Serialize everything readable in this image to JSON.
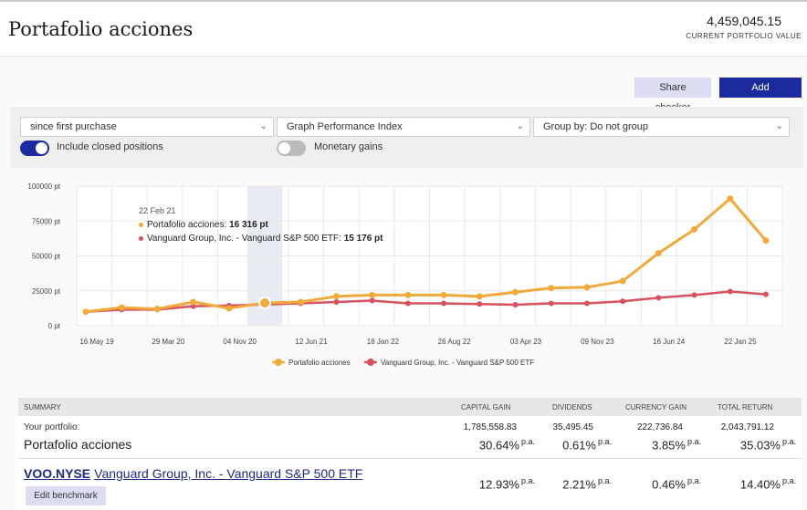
{
  "header": {
    "title": "Portafolio acciones",
    "portfolio_value": "4,459,045.15",
    "portfolio_value_label": "CURRENT PORTFOLIO VALUE"
  },
  "actions": {
    "share_label": "Share checker",
    "add_label": "Add investment"
  },
  "filters": {
    "period": "since first purchase",
    "graph_type": "Graph Performance Index",
    "group_by": "Group by: Do not group",
    "include_closed_label": "Include closed positions",
    "include_closed_on": true,
    "monetary_gains_label": "Monetary gains",
    "monetary_gains_on": false
  },
  "colors": {
    "portfolio": "#f2a93b",
    "benchmark": "#d9505f",
    "accent": "#1c2aa0"
  },
  "tooltip": {
    "date": "22 Feb 21",
    "portfolio_name": "Portafolio acciones:",
    "portfolio_value": "16 316 pt",
    "benchmark_name": "Vanguard Group, Inc. - Vanguard S&P 500 ETF:",
    "benchmark_value": "15 176 pt"
  },
  "chart_data": {
    "type": "line",
    "y_ticks": [
      "0 pt",
      "25000 pt",
      "50000 pt",
      "75000 pt",
      "100000 pt"
    ],
    "ylim": [
      0,
      100000
    ],
    "x_ticks": [
      "16 May 19",
      "29 Mar 20",
      "04 Nov 20",
      "12 Jun 21",
      "18 Jan 22",
      "26 Aug 22",
      "03 Apr 23",
      "09 Nov 23",
      "16 Jun 24",
      "22 Jan 25"
    ],
    "series": [
      {
        "name": "Portafolio acciones",
        "color": "#f2a93b",
        "values": [
          10000,
          13000,
          12000,
          17000,
          12500,
          16316,
          17000,
          21000,
          22000,
          22000,
          22000,
          21000,
          24000,
          27000,
          27500,
          32000,
          52000,
          69000,
          91000,
          61000
        ]
      },
      {
        "name": "Vanguard Group, Inc. - Vanguard S&P 500 ETF",
        "color": "#d9505f",
        "values": [
          10000,
          11500,
          11500,
          14000,
          14500,
          15176,
          16000,
          17000,
          18000,
          16000,
          16000,
          15500,
          15000,
          16000,
          16000,
          17500,
          20000,
          22000,
          24500,
          22500
        ]
      }
    ],
    "highlight_index": 5
  },
  "summary": {
    "headers": {
      "summary": "SUMMARY",
      "capital_gain": "CAPITAL GAIN",
      "dividends": "DIVIDENDS",
      "currency_gain": "CURRENCY GAIN",
      "total_return": "TOTAL RETURN"
    },
    "portfolio": {
      "label": "Your portfolio:",
      "name": "Portafolio acciones",
      "capital_gain_abs": "1,785,558.83",
      "dividends_abs": "35,495.45",
      "currency_gain_abs": "222,736.84",
      "total_return_abs": "2,043,791.12",
      "capital_gain_pct": "30.64%",
      "dividends_pct": "0.61%",
      "currency_gain_pct": "3.85%",
      "total_return_pct": "35.03%"
    },
    "benchmark": {
      "ticker": "VOO.NYSE",
      "name": "Vanguard Group, Inc. - Vanguard S&P 500 ETF",
      "capital_gain_pct": "12.93%",
      "dividends_pct": "2.21%",
      "currency_gain_pct": "0.46%",
      "total_return_pct": "14.40%",
      "edit_label": "Edit benchmark"
    },
    "pa_suffix": "p.a."
  }
}
